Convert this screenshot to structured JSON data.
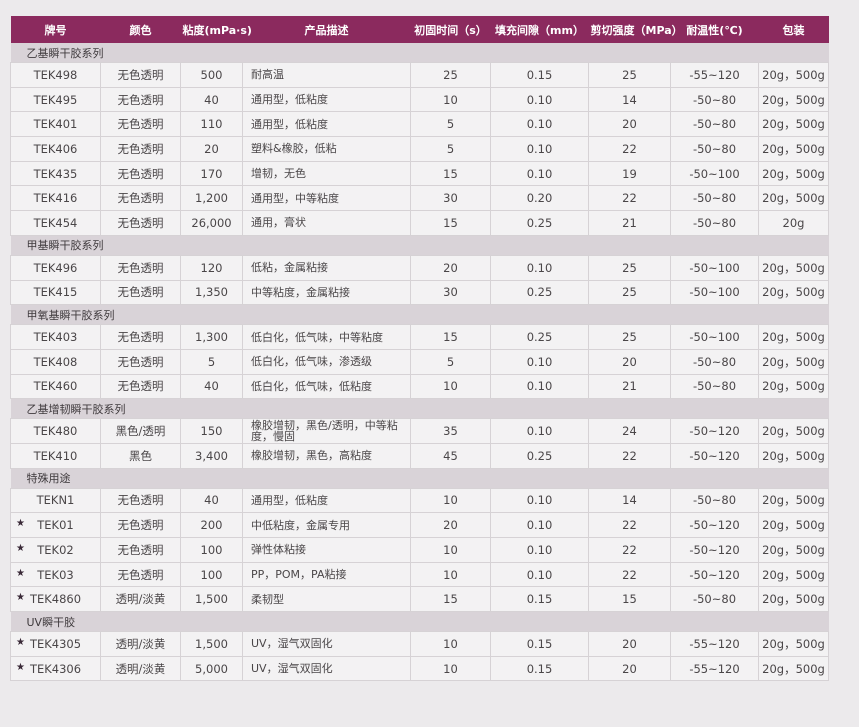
{
  "headers": {
    "grade": "牌号",
    "color": "颜色",
    "viscosity": "粘度(mPa·s)",
    "description": "产品描述",
    "fixture_time": "初固时间（s）",
    "gap_fill": "填充间隙（mm）",
    "shear_strength": "剪切强度（MPa）",
    "temp_resistance": "耐温性(℃)",
    "package": "包装"
  },
  "star_symbol": "★",
  "sections": [
    {
      "title": "乙基瞬干胶系列",
      "rows": [
        {
          "star": false,
          "grade": "TEK498",
          "color": "无色透明",
          "viscosity": "500",
          "description": "耐高温",
          "fixture_time": "25",
          "gap_fill": "0.15",
          "shear_strength": "25",
          "temp_resistance": "-55~120",
          "package": "20g，500g"
        },
        {
          "star": false,
          "grade": "TEK495",
          "color": "无色透明",
          "viscosity": "40",
          "description": "通用型，低粘度",
          "fixture_time": "10",
          "gap_fill": "0.10",
          "shear_strength": "14",
          "temp_resistance": "-50~80",
          "package": "20g，500g"
        },
        {
          "star": false,
          "grade": "TEK401",
          "color": "无色透明",
          "viscosity": "110",
          "description": "通用型，低粘度",
          "fixture_time": "5",
          "gap_fill": "0.10",
          "shear_strength": "20",
          "temp_resistance": "-50~80",
          "package": "20g，500g"
        },
        {
          "star": false,
          "grade": "TEK406",
          "color": "无色透明",
          "viscosity": "20",
          "description": "塑料&橡胶，低粘",
          "fixture_time": "5",
          "gap_fill": "0.10",
          "shear_strength": "22",
          "temp_resistance": "-50~80",
          "package": "20g，500g"
        },
        {
          "star": false,
          "grade": "TEK435",
          "color": "无色透明",
          "viscosity": "170",
          "description": "增韧，无色",
          "fixture_time": "15",
          "gap_fill": "0.10",
          "shear_strength": "19",
          "temp_resistance": "-50~100",
          "package": "20g，500g"
        },
        {
          "star": false,
          "grade": "TEK416",
          "color": "无色透明",
          "viscosity": "1,200",
          "description": "通用型，中等粘度",
          "fixture_time": "30",
          "gap_fill": "0.20",
          "shear_strength": "22",
          "temp_resistance": "-50~80",
          "package": "20g，500g"
        },
        {
          "star": false,
          "grade": "TEK454",
          "color": "无色透明",
          "viscosity": "26,000",
          "description": "通用，膏状",
          "fixture_time": "15",
          "gap_fill": "0.25",
          "shear_strength": "21",
          "temp_resistance": "-50~80",
          "package": "20g"
        }
      ]
    },
    {
      "title": "甲基瞬干胶系列",
      "rows": [
        {
          "star": false,
          "grade": "TEK496",
          "color": "无色透明",
          "viscosity": "120",
          "description": "低粘，金属粘接",
          "fixture_time": "20",
          "gap_fill": "0.10",
          "shear_strength": "25",
          "temp_resistance": "-50~100",
          "package": "20g，500g"
        },
        {
          "star": false,
          "grade": "TEK415",
          "color": "无色透明",
          "viscosity": "1,350",
          "description": "中等粘度，金属粘接",
          "fixture_time": "30",
          "gap_fill": "0.25",
          "shear_strength": "25",
          "temp_resistance": "-50~100",
          "package": "20g，500g"
        }
      ]
    },
    {
      "title": "甲氧基瞬干胶系列",
      "rows": [
        {
          "star": false,
          "grade": "TEK403",
          "color": "无色透明",
          "viscosity": "1,300",
          "description": "低白化，低气味，中等粘度",
          "fixture_time": "15",
          "gap_fill": "0.25",
          "shear_strength": "25",
          "temp_resistance": "-50~100",
          "package": "20g，500g"
        },
        {
          "star": false,
          "grade": "TEK408",
          "color": "无色透明",
          "viscosity": "5",
          "description": "低白化，低气味，渗透级",
          "fixture_time": "5",
          "gap_fill": "0.10",
          "shear_strength": "20",
          "temp_resistance": "-50~80",
          "package": "20g，500g"
        },
        {
          "star": false,
          "grade": "TEK460",
          "color": "无色透明",
          "viscosity": "40",
          "description": "低白化，低气味，低粘度",
          "fixture_time": "10",
          "gap_fill": "0.10",
          "shear_strength": "21",
          "temp_resistance": "-50~80",
          "package": "20g，500g"
        }
      ]
    },
    {
      "title": "乙基增韧瞬干胶系列",
      "rows": [
        {
          "star": false,
          "grade": "TEK480",
          "color": "黑色/透明",
          "viscosity": "150",
          "description": "橡胶增韧，黑色/透明，中等粘度，慢固",
          "fixture_time": "35",
          "gap_fill": "0.10",
          "shear_strength": "24",
          "temp_resistance": "-50~120",
          "package": "20g，500g"
        },
        {
          "star": false,
          "grade": "TEK410",
          "color": "黑色",
          "viscosity": "3,400",
          "description": "橡胶增韧，黑色，高粘度",
          "fixture_time": "45",
          "gap_fill": "0.25",
          "shear_strength": "22",
          "temp_resistance": "-50~120",
          "package": "20g，500g"
        }
      ]
    },
    {
      "title": "特殊用途",
      "rows": [
        {
          "star": false,
          "grade": "TEKN1",
          "color": "无色透明",
          "viscosity": "40",
          "description": "通用型，低粘度",
          "fixture_time": "10",
          "gap_fill": "0.10",
          "shear_strength": "14",
          "temp_resistance": "-50~80",
          "package": "20g，500g"
        },
        {
          "star": true,
          "grade": "TEK01",
          "color": "无色透明",
          "viscosity": "200",
          "description": "中低粘度，金属专用",
          "fixture_time": "20",
          "gap_fill": "0.10",
          "shear_strength": "22",
          "temp_resistance": "-50~120",
          "package": "20g，500g"
        },
        {
          "star": true,
          "grade": "TEK02",
          "color": "无色透明",
          "viscosity": "100",
          "description": "弹性体粘接",
          "fixture_time": "10",
          "gap_fill": "0.10",
          "shear_strength": "22",
          "temp_resistance": "-50~120",
          "package": "20g，500g"
        },
        {
          "star": true,
          "grade": "TEK03",
          "color": "无色透明",
          "viscosity": "100",
          "description": "PP，POM，PA粘接",
          "fixture_time": "10",
          "gap_fill": "0.10",
          "shear_strength": "22",
          "temp_resistance": "-50~120",
          "package": "20g，500g"
        },
        {
          "star": true,
          "grade": "TEK4860",
          "color": "透明/淡黄",
          "viscosity": "1,500",
          "description": "柔韧型",
          "fixture_time": "15",
          "gap_fill": "0.15",
          "shear_strength": "15",
          "temp_resistance": "-50~80",
          "package": "20g，500g"
        }
      ]
    },
    {
      "title": "UV瞬干胶",
      "rows": [
        {
          "star": true,
          "grade": "TEK4305",
          "color": "透明/淡黄",
          "viscosity": "1,500",
          "description": "UV，湿气双固化",
          "fixture_time": "10",
          "gap_fill": "0.15",
          "shear_strength": "20",
          "temp_resistance": "-55~120",
          "package": "20g，500g"
        },
        {
          "star": true,
          "grade": "TEK4306",
          "color": "透明/淡黄",
          "viscosity": "5,000",
          "description": "UV，湿气双固化",
          "fixture_time": "10",
          "gap_fill": "0.15",
          "shear_strength": "20",
          "temp_resistance": "-55~120",
          "package": "20g，500g"
        }
      ]
    }
  ],
  "colors": {
    "header_bg": "#8b2a5e",
    "section_bg": "#d9d3d8",
    "row_bg": "#f3f2f3",
    "border": "#d6d2d5"
  }
}
